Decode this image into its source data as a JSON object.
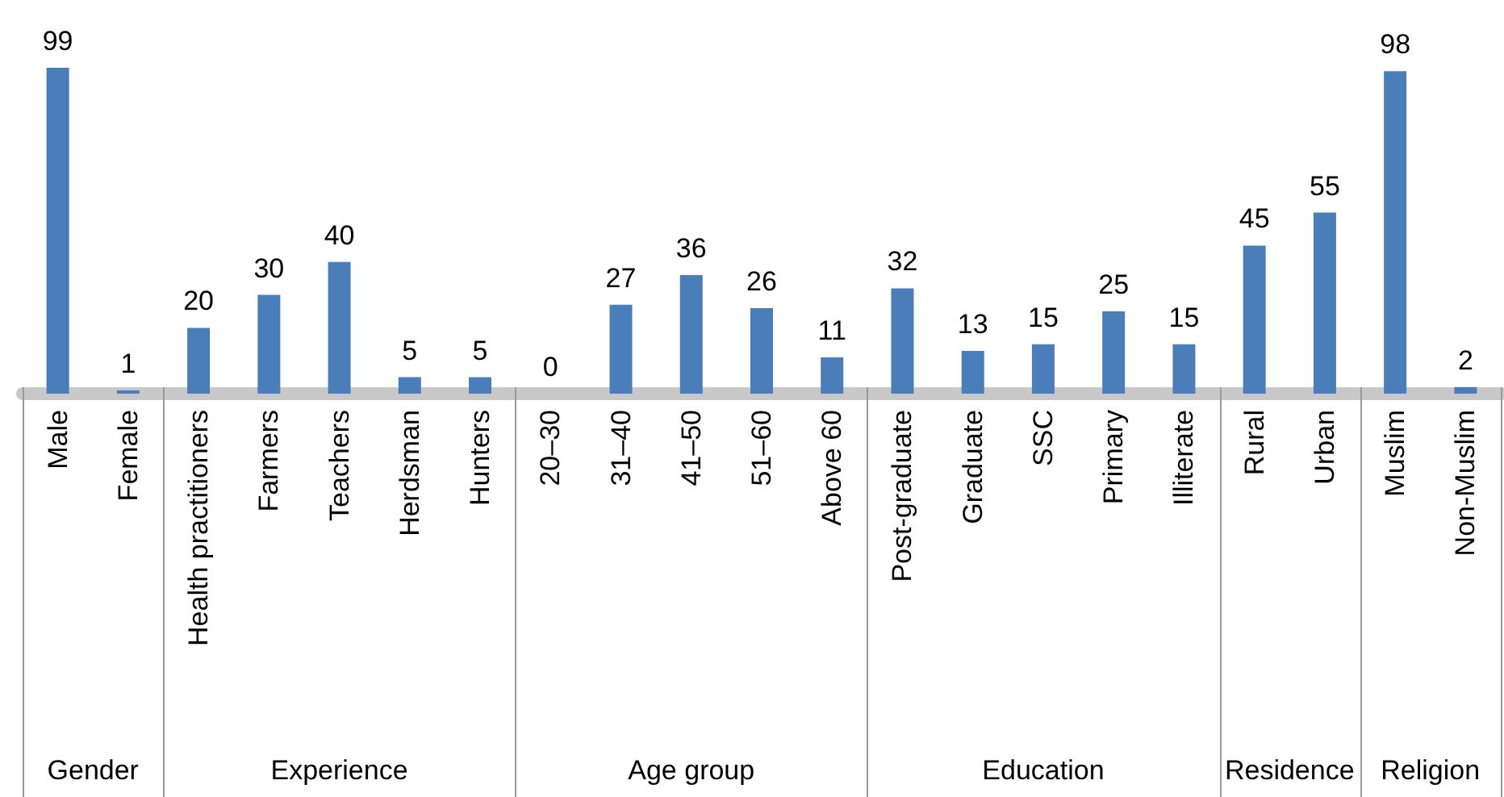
{
  "chart_data": {
    "type": "bar",
    "categories": [
      "Male",
      "Female",
      "Health practitioners",
      "Farmers",
      "Teachers",
      "Herdsman",
      "Hunters",
      "20–30",
      "31–40",
      "41–50",
      "51–60",
      "Above 60",
      "Post-graduate",
      "Graduate",
      "SSC",
      "Primary",
      "Illiterate",
      "Rural",
      "Urban",
      "Muslim",
      "Non-Muslim"
    ],
    "values": [
      99,
      1,
      20,
      30,
      40,
      5,
      5,
      0,
      27,
      36,
      26,
      11,
      32,
      13,
      15,
      25,
      15,
      45,
      55,
      98,
      2
    ],
    "color": "#4a7ebb",
    "data_labels": true,
    "annotations": [
      "Gender",
      "Experience",
      "Age group",
      "Education",
      "Residence",
      "Religion"
    ]
  }
}
